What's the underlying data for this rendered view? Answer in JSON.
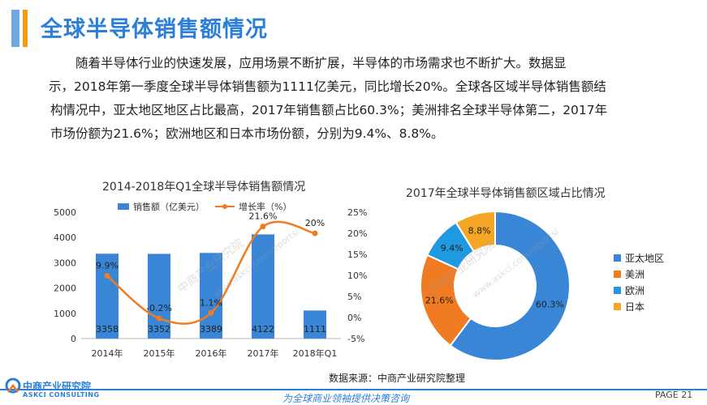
{
  "header": {
    "title": "全球半导体销售额情况"
  },
  "paragraph": {
    "lines": [
      "随着半导体行业的快速发展，应用场景不断扩展，半导体的市场需求也不断扩大。数据显",
      "示，2018年第一季度全球半导体销售额为1111亿美元，同比增长20%。全球各区域半导体销售额结",
      "构情况中，亚太地区地区占比最高，2017年销售额占比60.3%；美洲排名全球半导体第二，2017年",
      "市场份额为21.6%；欧洲地区和日本市场份额，分别为9.4%、8.8%。"
    ]
  },
  "chart_data": [
    {
      "type": "bar",
      "title": "2014-2018年Q1全球半导体销售额情况",
      "categories": [
        "2014年",
        "2015年",
        "2016年",
        "2017年",
        "2018年Q1"
      ],
      "series": [
        {
          "name": "销售额（亿美元）",
          "type": "bar",
          "axis": "left",
          "values": [
            3358,
            3352,
            3389,
            4122,
            1111
          ],
          "labels": [
            "3358",
            "3352",
            "3389",
            "4122",
            "1111"
          ],
          "color": "#3a86d6"
        },
        {
          "name": "增长率（%）",
          "type": "line",
          "axis": "right",
          "values": [
            9.9,
            -0.2,
            1.1,
            21.6,
            20
          ],
          "labels": [
            "9.9%",
            "-0.2%",
            "1.1%",
            "21.6%",
            "20%"
          ],
          "color": "#f07b22"
        }
      ],
      "y_left": {
        "min": 0,
        "max": 5000,
        "ticks": [
          "0",
          "1000",
          "2000",
          "3000",
          "4000",
          "5000"
        ]
      },
      "y_right": {
        "min": -5,
        "max": 25,
        "ticks": [
          "-5%",
          "0%",
          "5%",
          "10%",
          "15%",
          "20%",
          "25%"
        ]
      },
      "legend": "top"
    },
    {
      "type": "pie",
      "title": "2017年全球半导体销售额区域占比情况",
      "slices": [
        {
          "name": "亚太地区",
          "value": 60.3,
          "label": "60.3%",
          "color": "#3a86d6"
        },
        {
          "name": "美洲",
          "value": 21.6,
          "label": "21.6%",
          "color": "#f07b22"
        },
        {
          "name": "欧洲",
          "value": 9.4,
          "label": "9.4%",
          "color": "#1f9ae0"
        },
        {
          "name": "日本",
          "value": 8.8,
          "label": "8.8%",
          "color": "#f5a623"
        }
      ],
      "legend": "right"
    }
  ],
  "footer": {
    "source": "数据来源：中商产业研究院整理",
    "logo_name": "中商产业研究院",
    "logo_en": "ASKCI CONSULTING",
    "slogan": "为全球商业领袖提供决策咨询",
    "page": "PAGE 21",
    "watermark1": "中商产业研究院",
    "watermark2": "www.askci.com/reports/"
  },
  "colors": {
    "accent": "#2c7fd8",
    "orange": "#f07b22"
  }
}
